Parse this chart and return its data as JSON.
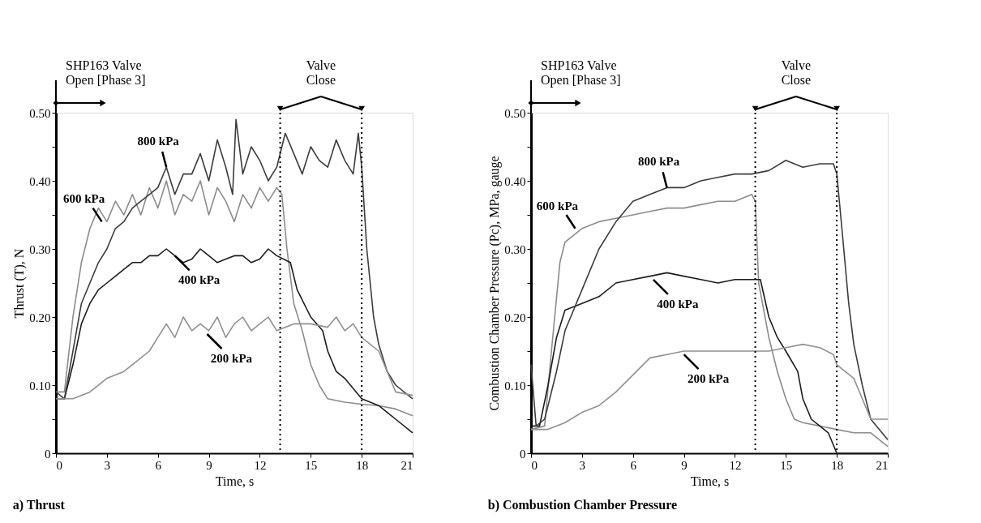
{
  "chart_data": [
    {
      "type": "line",
      "title": "a) Thrust",
      "xlabel": "Time, s",
      "ylabel": "Thrust (T), N",
      "xlim": [
        0,
        21
      ],
      "ylim": [
        0,
        0.5
      ],
      "xticks": [
        0,
        3,
        6,
        9,
        12,
        15,
        18,
        21
      ],
      "yticks": [
        0,
        {
          "value": 0.05,
          "label": null
        },
        {
          "value": 0.1,
          "label": "0.10"
        },
        {
          "value": 0.15,
          "label": null
        },
        {
          "value": 0.2,
          "label": "0.20"
        },
        {
          "value": 0.25,
          "label": null
        },
        {
          "value": 0.3,
          "label": "0.30"
        },
        {
          "value": 0.35,
          "label": null
        },
        {
          "value": 0.4,
          "label": "0.40"
        },
        {
          "value": 0.45,
          "label": null
        },
        {
          "value": 0.5,
          "label": "0.50"
        }
      ],
      "grid": false,
      "legend": false,
      "marker": "none",
      "line_style": "solid",
      "series": [
        {
          "color": "#8c8c8c",
          "x": [
            0,
            0.5,
            1,
            1.5,
            2,
            2.5,
            3,
            3.5,
            4,
            4.5,
            5,
            5.5,
            6,
            6.5,
            7,
            7.5,
            8,
            8.5,
            9,
            9.5,
            10,
            10.5,
            11,
            11.5,
            12,
            12.5,
            13,
            13.3,
            13.6,
            14,
            14.5,
            15,
            15.5,
            16,
            17,
            18,
            19,
            20,
            21
          ],
          "values": [
            0.09,
            0.09,
            0.2,
            0.28,
            0.33,
            0.36,
            0.34,
            0.37,
            0.35,
            0.38,
            0.35,
            0.39,
            0.36,
            0.4,
            0.35,
            0.38,
            0.37,
            0.4,
            0.35,
            0.39,
            0.37,
            0.34,
            0.38,
            0.36,
            0.39,
            0.37,
            0.39,
            0.38,
            0.3,
            0.22,
            0.18,
            0.13,
            0.1,
            0.08,
            0.075,
            0.072,
            0.07,
            0.065,
            0.055
          ]
        },
        {
          "color": "#1c1c1c",
          "x": [
            0,
            0.5,
            1,
            1.5,
            2,
            2.5,
            3,
            3.5,
            4,
            4.5,
            5,
            5.5,
            6,
            6.5,
            7,
            7.5,
            8,
            8.5,
            9,
            9.5,
            10,
            10.5,
            11,
            11.5,
            12,
            12.5,
            13,
            13.8,
            14.2,
            15,
            15.7,
            16,
            16.5,
            17,
            18,
            19,
            20,
            21
          ],
          "values": [
            0.08,
            0.08,
            0.13,
            0.19,
            0.22,
            0.24,
            0.25,
            0.26,
            0.27,
            0.28,
            0.28,
            0.29,
            0.29,
            0.3,
            0.29,
            0.28,
            0.285,
            0.3,
            0.29,
            0.28,
            0.285,
            0.29,
            0.29,
            0.28,
            0.285,
            0.3,
            0.29,
            0.28,
            0.24,
            0.2,
            0.18,
            0.15,
            0.12,
            0.11,
            0.08,
            0.07,
            0.05,
            0.03
          ]
        },
        {
          "color": "#3c3c3c",
          "x": [
            0,
            0.5,
            1,
            1.5,
            2,
            2.5,
            3,
            3.5,
            4,
            4.5,
            5,
            5.5,
            6,
            6.5,
            7,
            7.5,
            8,
            8.5,
            9,
            9.5,
            10,
            10.4,
            10.6,
            11,
            11.5,
            12,
            12.5,
            13,
            13.5,
            14,
            14.5,
            15,
            15.5,
            16,
            16.5,
            17,
            17.5,
            17.8,
            18,
            18.3,
            18.7,
            19,
            19.5,
            20,
            21
          ],
          "values": [
            0.09,
            0.08,
            0.15,
            0.22,
            0.25,
            0.28,
            0.3,
            0.33,
            0.34,
            0.36,
            0.37,
            0.38,
            0.39,
            0.42,
            0.38,
            0.41,
            0.41,
            0.44,
            0.4,
            0.46,
            0.42,
            0.38,
            0.49,
            0.41,
            0.45,
            0.43,
            0.4,
            0.42,
            0.47,
            0.44,
            0.41,
            0.45,
            0.43,
            0.42,
            0.46,
            0.43,
            0.41,
            0.47,
            0.42,
            0.3,
            0.2,
            0.16,
            0.12,
            0.1,
            0.08
          ]
        },
        {
          "color": "#909090",
          "x": [
            0,
            1,
            2,
            3,
            4,
            5,
            5.5,
            6,
            6.5,
            7,
            7.5,
            8,
            8.5,
            9,
            9.5,
            10,
            10.5,
            11,
            11.5,
            12,
            12.5,
            13,
            14,
            15,
            16,
            16.5,
            17,
            17.5,
            18,
            19,
            19.5,
            20,
            21
          ],
          "values": [
            0.08,
            0.08,
            0.09,
            0.11,
            0.12,
            0.14,
            0.15,
            0.17,
            0.19,
            0.17,
            0.2,
            0.18,
            0.19,
            0.18,
            0.2,
            0.17,
            0.19,
            0.2,
            0.18,
            0.19,
            0.2,
            0.18,
            0.19,
            0.19,
            0.185,
            0.2,
            0.18,
            0.19,
            0.17,
            0.15,
            0.12,
            0.09,
            0.085
          ]
        }
      ],
      "ref_lines": [
        {
          "axis": "x",
          "value": 13.2,
          "line_style": "dotted",
          "color": "#000000"
        },
        {
          "axis": "x",
          "value": 18,
          "line_style": "dotted",
          "color": "#000000"
        }
      ],
      "annotations": [
        "SHP163 Valve\nOpen [Phase 3]",
        "Valve\nClose",
        {
          "text": "800 kPa",
          "x": 6.5,
          "y": 0.42
        },
        {
          "text": "600 kPa",
          "x": 2.7,
          "y": 0.34
        },
        {
          "text": "400 kPa",
          "x": 7.0,
          "y": 0.29
        },
        {
          "text": "200 kPa",
          "x": 8.9,
          "y": 0.175
        }
      ]
    },
    {
      "type": "line",
      "title": "b) Combustion Chamber Pressure",
      "xlabel": "Time, s",
      "ylabel": "Combustion Chamber Pressure (Pc), MPa, gauge",
      "xlim": [
        0,
        21
      ],
      "ylim": [
        0,
        0.5
      ],
      "xticks": [
        0,
        3,
        6,
        9,
        12,
        15,
        18,
        21
      ],
      "yticks": [
        0,
        {
          "value": 0.05,
          "label": null
        },
        {
          "value": 0.1,
          "label": "0.10"
        },
        {
          "value": 0.15,
          "label": null
        },
        {
          "value": 0.2,
          "label": "0.20"
        },
        {
          "value": 0.25,
          "label": null
        },
        {
          "value": 0.3,
          "label": "0.30"
        },
        {
          "value": 0.35,
          "label": null
        },
        {
          "value": 0.4,
          "label": "0.40"
        },
        {
          "value": 0.45,
          "label": null
        },
        {
          "value": 0.5,
          "label": "0.50"
        }
      ],
      "grid": false,
      "legend": false,
      "marker": "none",
      "line_style": "solid",
      "series": [
        {
          "color": "#8c8c8c",
          "x": [
            0,
            0.8,
            1.2,
            1.7,
            2,
            3,
            4,
            5,
            6,
            7,
            8,
            9,
            10,
            11,
            12,
            13,
            13.2,
            13.4,
            14,
            14.5,
            15,
            15.5,
            16,
            17,
            18,
            19,
            20,
            21
          ],
          "values": [
            0.035,
            0.04,
            0.15,
            0.28,
            0.31,
            0.33,
            0.34,
            0.345,
            0.35,
            0.355,
            0.36,
            0.36,
            0.365,
            0.37,
            0.37,
            0.38,
            0.37,
            0.25,
            0.17,
            0.12,
            0.08,
            0.05,
            0.045,
            0.04,
            0.035,
            0.03,
            0.03,
            0.01
          ]
        },
        {
          "color": "#1c1c1c",
          "x": [
            0,
            0.5,
            1,
            1.5,
            2,
            3,
            4,
            5,
            6,
            7,
            8,
            9,
            10,
            11,
            12,
            13,
            13.5,
            14,
            14.5,
            15,
            15.7,
            16,
            16.5,
            17,
            17.5,
            18,
            19,
            21
          ],
          "values": [
            0.04,
            0.04,
            0.1,
            0.17,
            0.21,
            0.22,
            0.23,
            0.25,
            0.255,
            0.26,
            0.265,
            0.26,
            0.255,
            0.25,
            0.255,
            0.255,
            0.255,
            0.2,
            0.17,
            0.15,
            0.12,
            0.08,
            0.05,
            0.04,
            0.03,
            0.0,
            0.0,
            0.0
          ]
        },
        {
          "color": "#3c3c3c",
          "x": [
            0,
            0.3,
            0.8,
            1.5,
            2,
            3,
            4,
            5,
            6,
            7,
            8,
            9,
            10,
            11,
            12,
            13,
            14,
            15,
            16,
            17,
            17.8,
            18,
            18.3,
            18.7,
            19,
            19.5,
            20,
            21
          ],
          "values": [
            0.13,
            0.04,
            0.05,
            0.12,
            0.18,
            0.24,
            0.3,
            0.34,
            0.37,
            0.38,
            0.39,
            0.39,
            0.4,
            0.405,
            0.41,
            0.41,
            0.415,
            0.43,
            0.42,
            0.425,
            0.425,
            0.41,
            0.33,
            0.22,
            0.16,
            0.1,
            0.05,
            0.02
          ]
        },
        {
          "color": "#909090",
          "x": [
            0,
            1,
            2,
            3,
            4,
            5,
            6,
            7,
            8,
            9,
            10,
            11,
            12,
            13,
            14,
            15,
            16,
            17,
            17.8,
            18,
            19,
            19.5,
            20,
            21
          ],
          "values": [
            0.035,
            0.035,
            0.045,
            0.06,
            0.07,
            0.09,
            0.115,
            0.14,
            0.145,
            0.15,
            0.15,
            0.15,
            0.15,
            0.15,
            0.15,
            0.155,
            0.16,
            0.155,
            0.145,
            0.13,
            0.11,
            0.08,
            0.05,
            0.05
          ]
        }
      ],
      "ref_lines": [
        {
          "axis": "x",
          "value": 13.2,
          "line_style": "dotted",
          "color": "#000000"
        },
        {
          "axis": "x",
          "value": 18,
          "line_style": "dotted",
          "color": "#000000"
        }
      ],
      "annotations": [
        "SHP163 Valve\nOpen [Phase 3]",
        "Valve\nClose",
        {
          "text": "800 kPa",
          "x": 8,
          "y": 0.39
        },
        {
          "text": "600 kPa",
          "x": 2.6,
          "y": 0.33
        },
        {
          "text": "400 kPa",
          "x": 7.2,
          "y": 0.255
        },
        {
          "text": "200 kPa",
          "x": 9.0,
          "y": 0.145
        }
      ]
    }
  ]
}
